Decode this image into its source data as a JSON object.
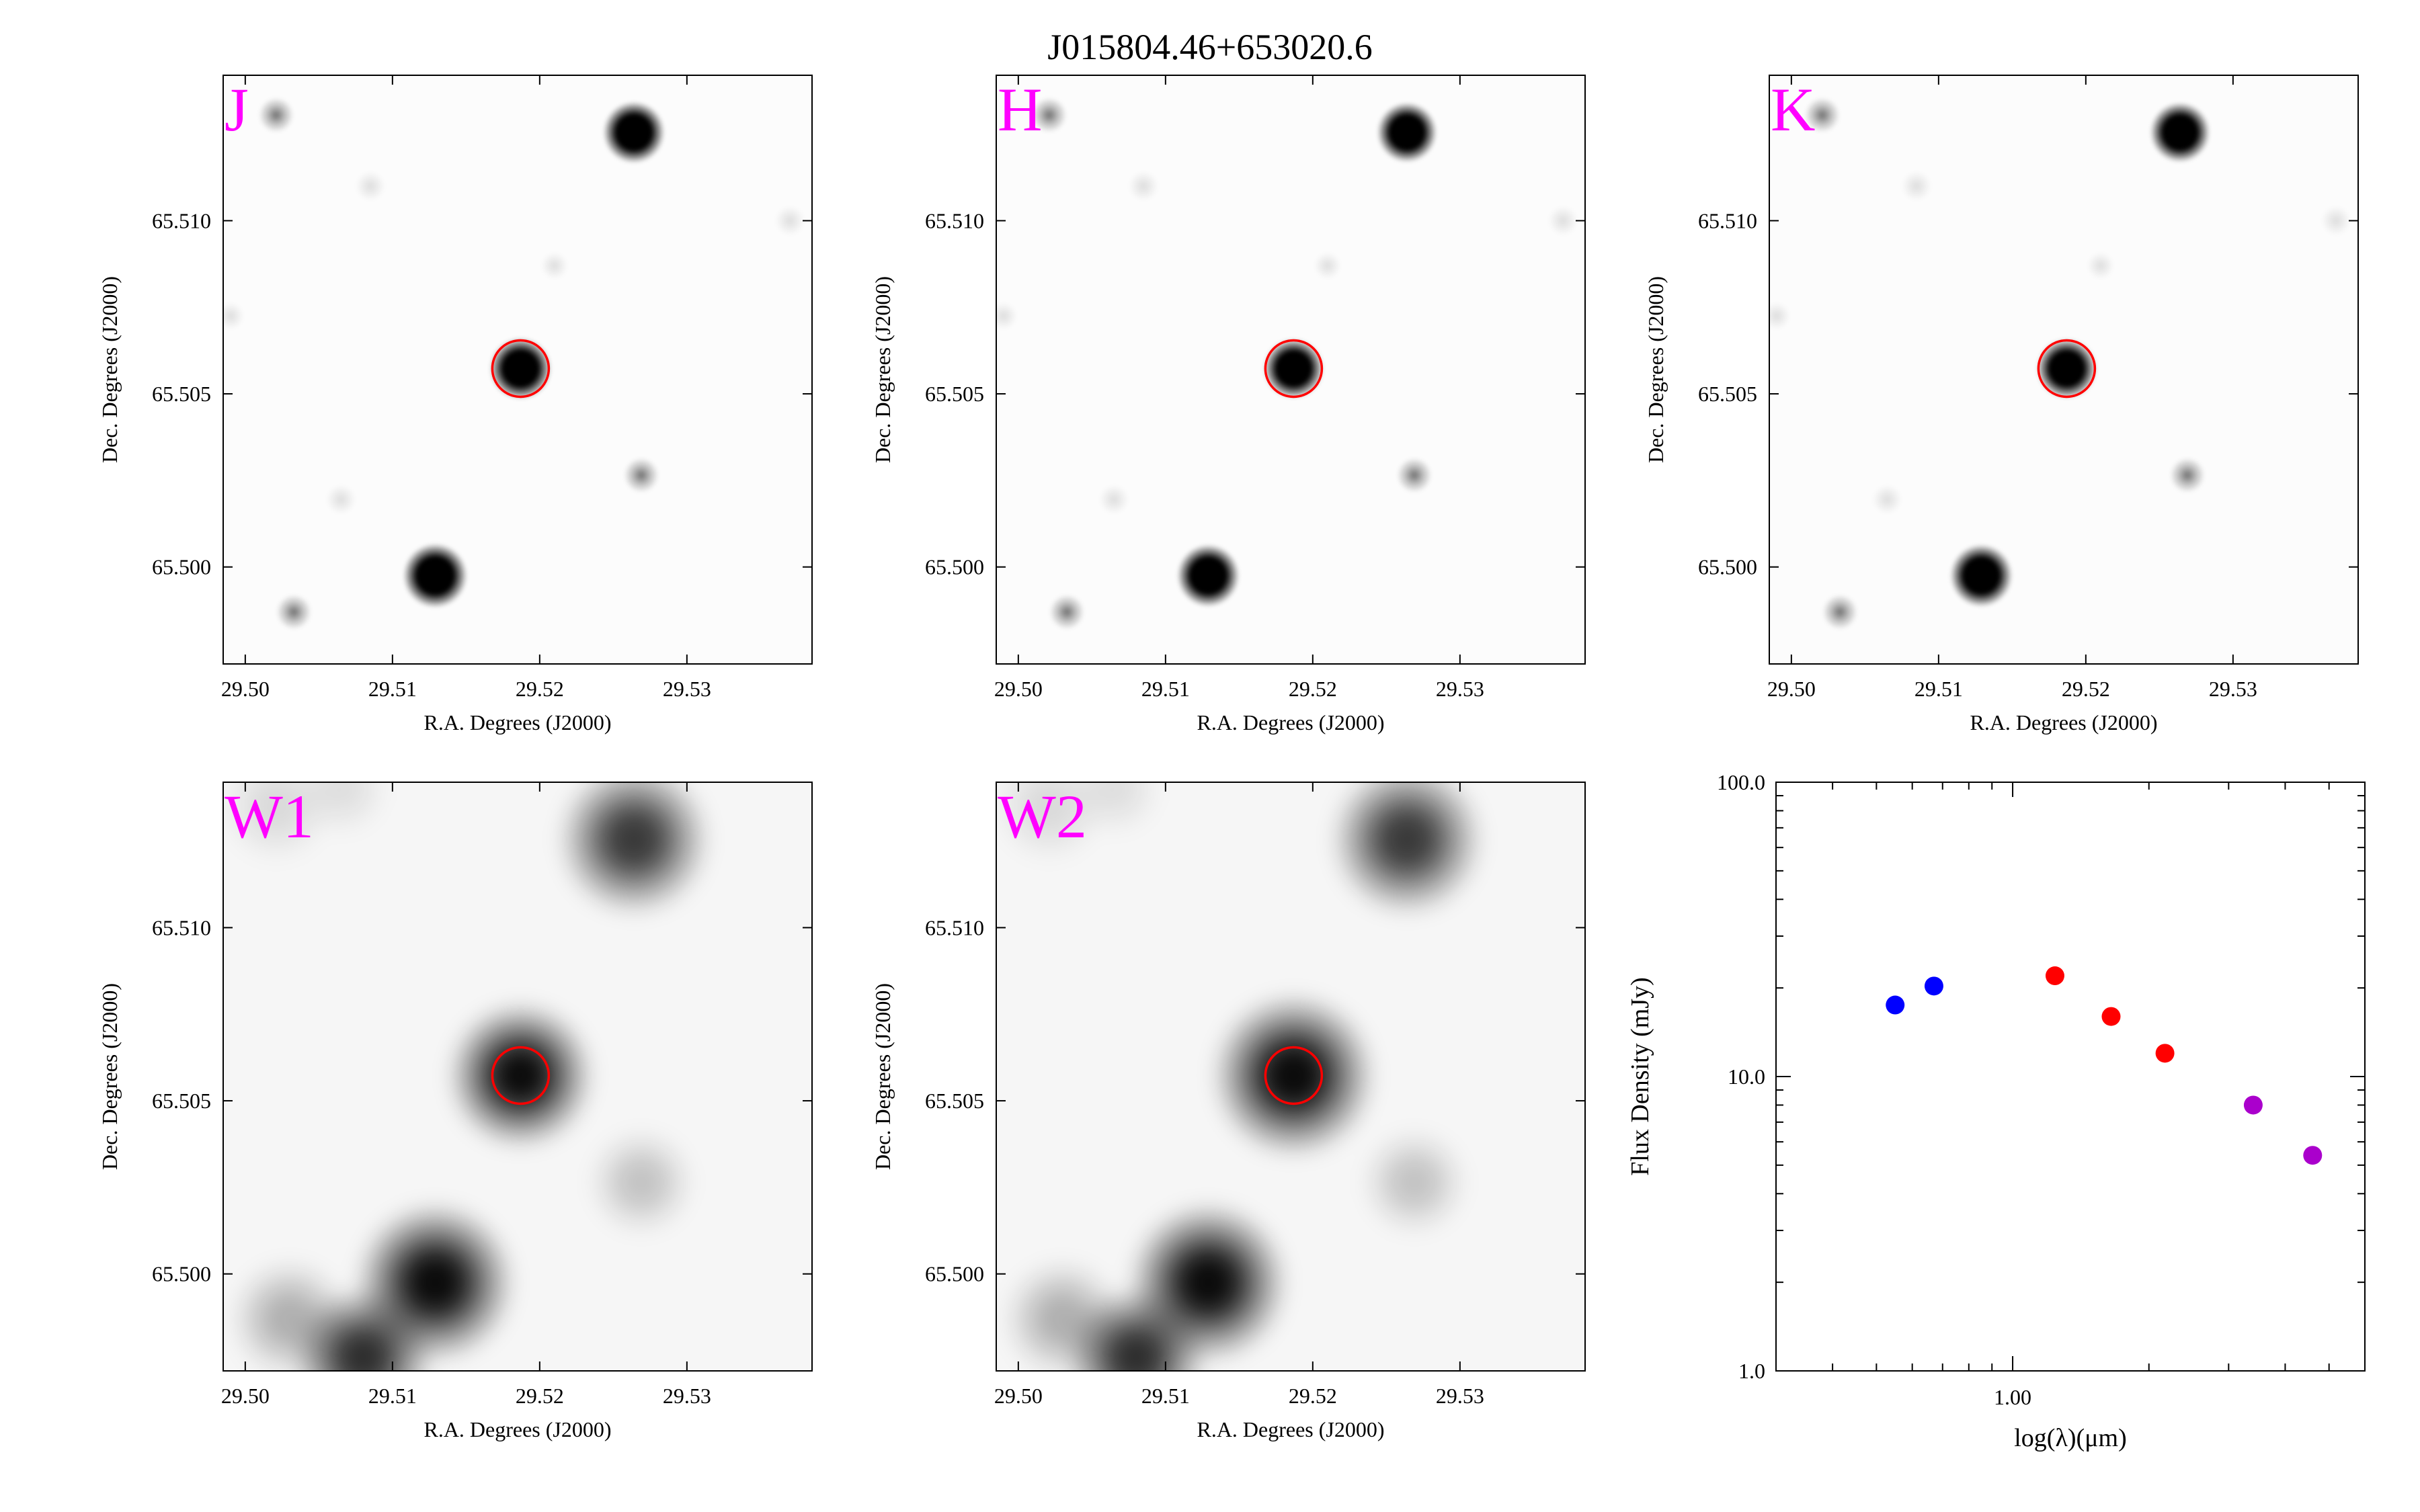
{
  "figure": {
    "title": "J015804.46+653020.6",
    "ra_axis_label": "R.A. Degrees (J2000)",
    "dec_axis_label": "Dec. Degrees (J2000)",
    "ra_tick_labels": [
      "29.50",
      "29.51",
      "29.52",
      "29.53"
    ],
    "dec_tick_labels": [
      "65.510",
      "65.505",
      "65.500"
    ],
    "target_marker_color": "#ff0000",
    "band_label_color": "#ff00ff"
  },
  "panels": [
    {
      "band": "J",
      "ra_ticks": [
        29.5,
        29.51,
        29.52,
        29.53
      ],
      "dec_ticks": [
        65.51,
        65.505,
        65.5
      ]
    },
    {
      "band": "H",
      "ra_ticks": [
        29.5,
        29.51,
        29.52,
        29.53
      ],
      "dec_ticks": [
        65.51,
        65.505,
        65.5
      ]
    },
    {
      "band": "K",
      "ra_ticks": [
        29.5,
        29.51,
        29.52,
        29.53
      ],
      "dec_ticks": [
        65.51,
        65.505,
        65.5
      ]
    },
    {
      "band": "W1",
      "ra_ticks": [
        29.5,
        29.51,
        29.52,
        29.53
      ],
      "dec_ticks": [
        65.51,
        65.505,
        65.5
      ]
    },
    {
      "band": "W2",
      "ra_ticks": [
        29.5,
        29.51,
        29.52,
        29.53
      ],
      "dec_ticks": [
        65.51,
        65.505,
        65.5
      ]
    }
  ],
  "chart_data": {
    "type": "scatter",
    "title": "",
    "xlabel": "log(λ)(μm)",
    "ylabel": "Flux Density (mJy)",
    "x_scale": "log",
    "y_scale": "log",
    "xlim": [
      0.3,
      6.0
    ],
    "ylim": [
      1.0,
      100.0
    ],
    "x_tick_labels": [
      "1.00"
    ],
    "y_tick_labels": [
      "1.0",
      "10.0",
      "100.0"
    ],
    "grid": false,
    "legend": "none",
    "series": [
      {
        "color": "#0000ff",
        "x": [
          0.55,
          0.67
        ],
        "y": [
          17.5,
          20.3
        ]
      },
      {
        "color": "#ff0000",
        "x": [
          1.24,
          1.65,
          2.17
        ],
        "y": [
          22.0,
          16.0,
          12.0
        ]
      },
      {
        "color": "#aa00cc",
        "x": [
          3.4,
          4.6
        ],
        "y": [
          8.0,
          5.4
        ]
      }
    ]
  }
}
